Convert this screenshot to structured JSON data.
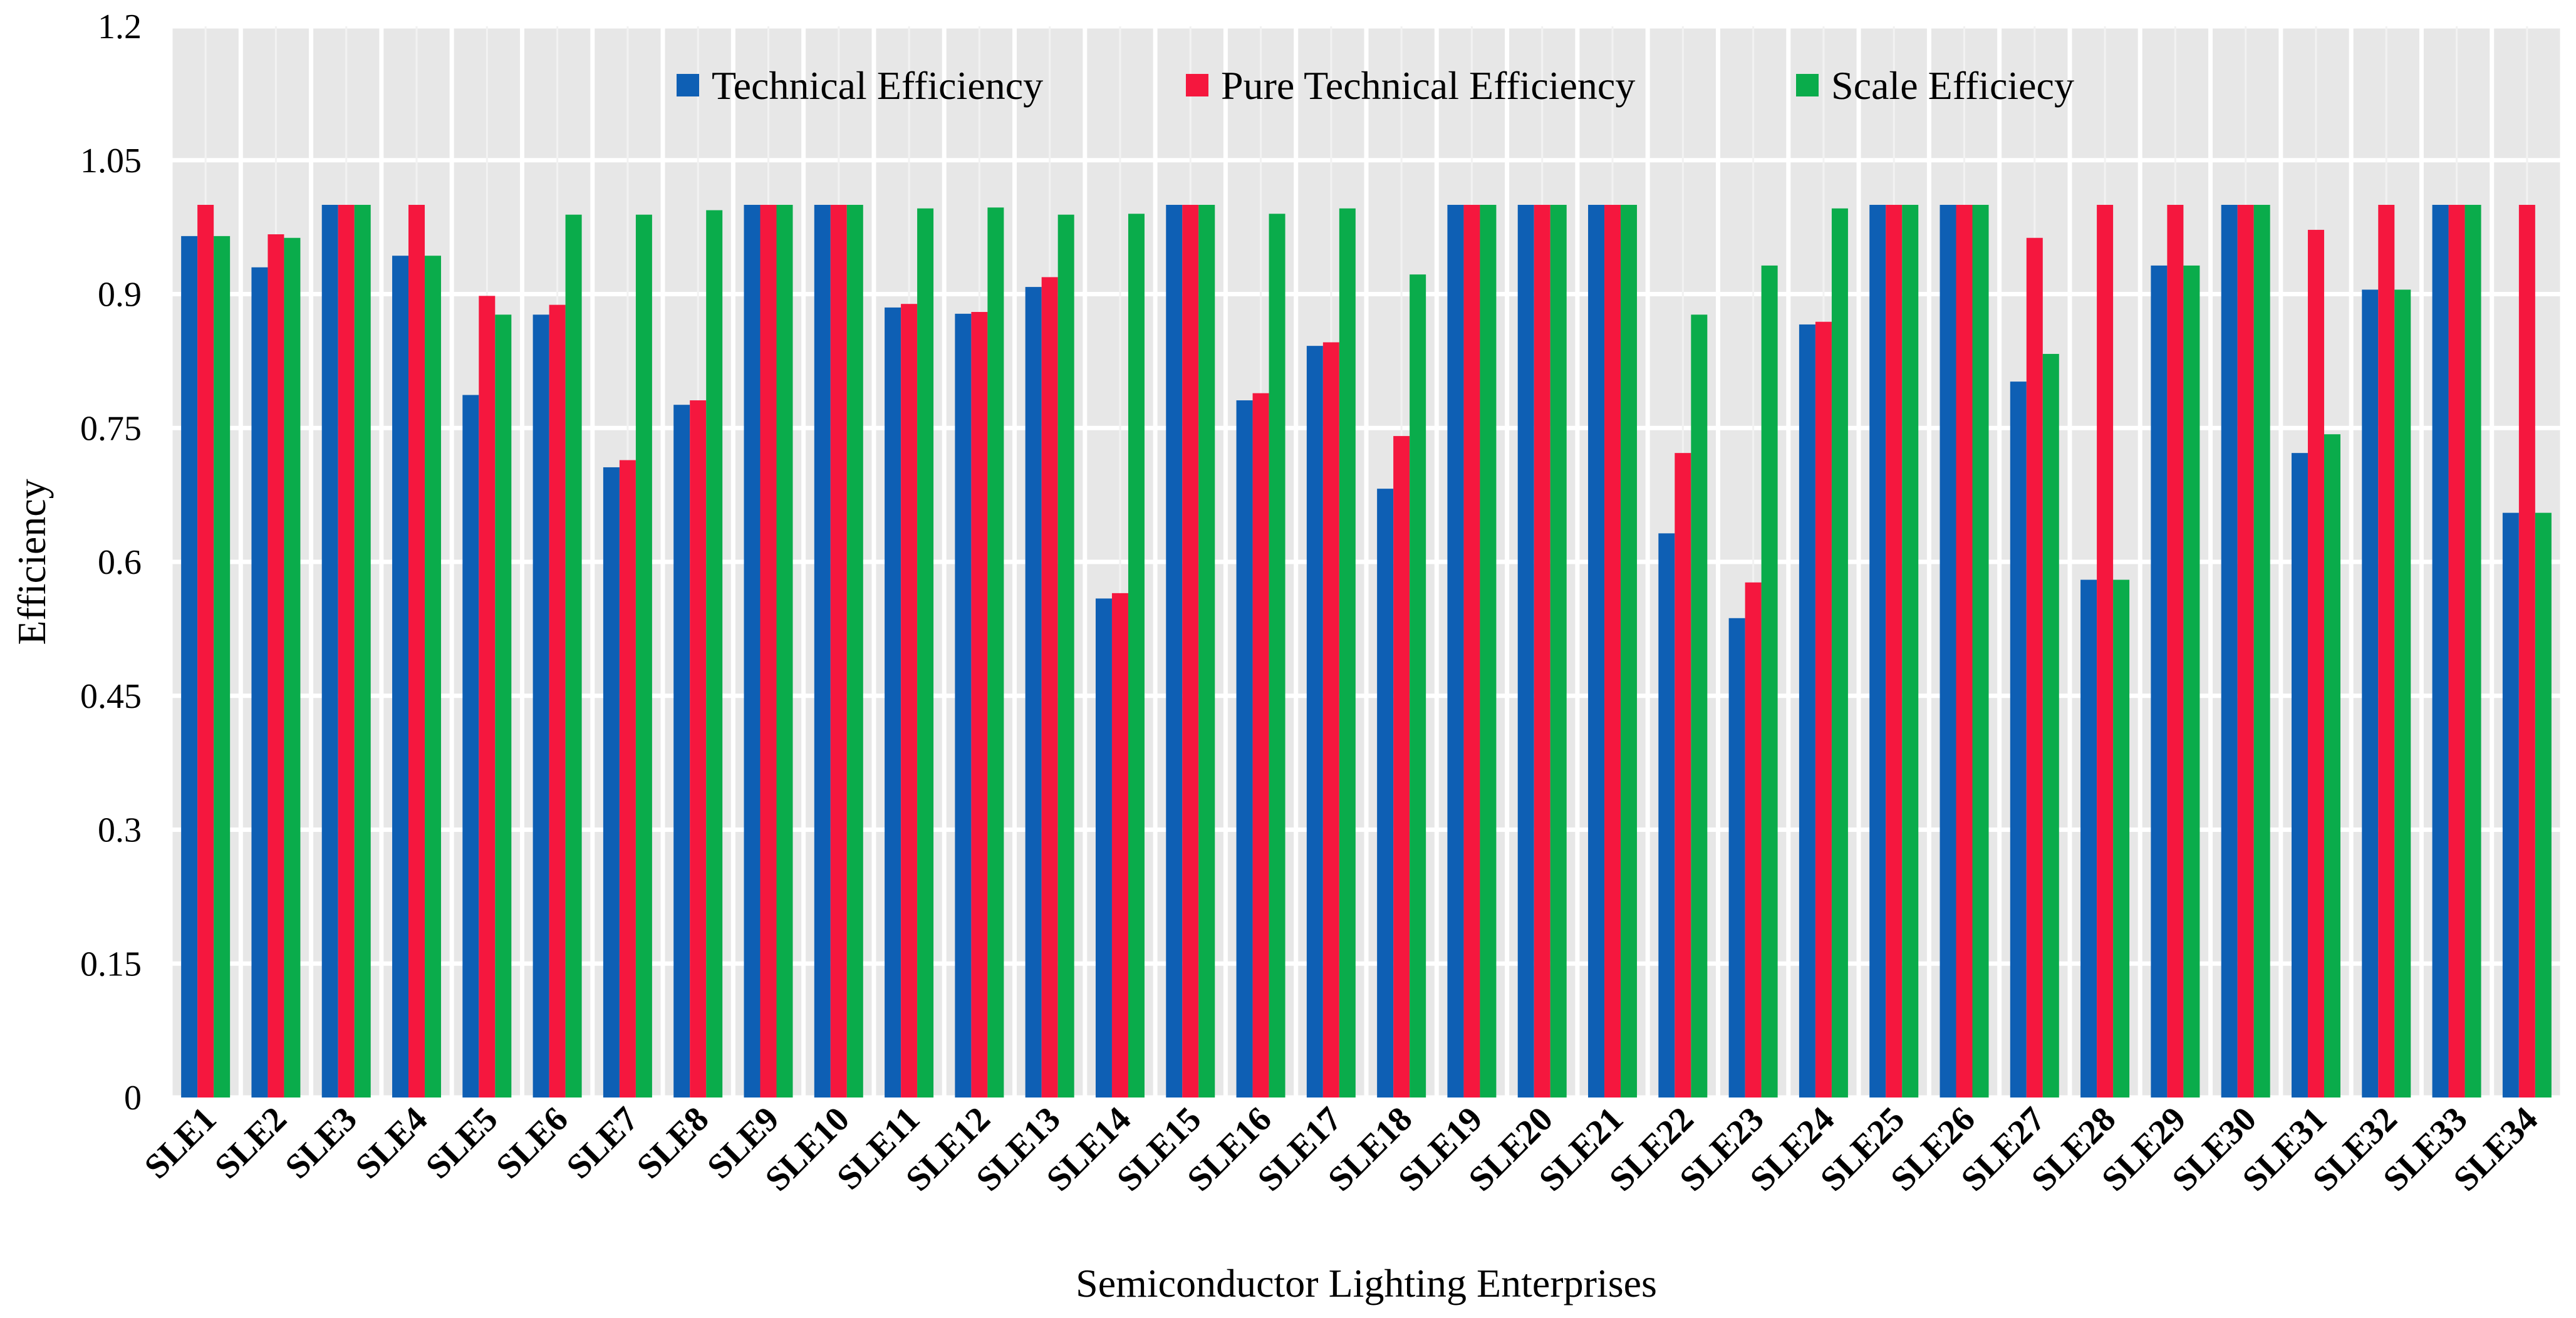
{
  "chart_data": {
    "type": "bar",
    "title": "",
    "xlabel": "Semiconductor Lighting Enterprises",
    "ylabel": "Efficiency",
    "ylim": [
      0,
      1.2
    ],
    "yticks": [
      "0",
      "0.15",
      "0.3",
      "0.45",
      "0.6",
      "0.75",
      "0.9",
      "1.05",
      "1.2"
    ],
    "grid": true,
    "legend_position": "top-center",
    "categories": [
      "SLE1",
      "SLE2",
      "SLE3",
      "SLE4",
      "SLE5",
      "SLE6",
      "SLE7",
      "SLE8",
      "SLE9",
      "SLE10",
      "SLE11",
      "SLE12",
      "SLE13",
      "SLE14",
      "SLE15",
      "SLE16",
      "SLE17",
      "SLE18",
      "SLE19",
      "SLE20",
      "SLE21",
      "SLE22",
      "SLE23",
      "SLE24",
      "SLE25",
      "SLE26",
      "SLE27",
      "SLE28",
      "SLE29",
      "SLE30",
      "SLE31",
      "SLE32",
      "SLE33",
      "SLE34"
    ],
    "series": [
      {
        "name": "Technical Efficiency",
        "color": "#0e5fb4",
        "values": [
          0.965,
          0.93,
          1.0,
          0.943,
          0.787,
          0.877,
          0.706,
          0.776,
          1.0,
          1.0,
          0.885,
          0.878,
          0.908,
          0.559,
          1.0,
          0.781,
          0.842,
          0.682,
          1.0,
          1.0,
          1.0,
          0.632,
          0.537,
          0.866,
          1.0,
          1.0,
          0.802,
          0.58,
          0.932,
          1.0,
          0.722,
          0.905,
          1.0,
          0.655
        ]
      },
      {
        "name": "Pure Technical Efficiency",
        "color": "#f5173e",
        "values": [
          1.0,
          0.967,
          1.0,
          1.0,
          0.898,
          0.888,
          0.714,
          0.781,
          1.0,
          1.0,
          0.889,
          0.88,
          0.919,
          0.565,
          1.0,
          0.789,
          0.846,
          0.741,
          1.0,
          1.0,
          1.0,
          0.722,
          0.577,
          0.869,
          1.0,
          1.0,
          0.963,
          1.0,
          1.0,
          1.0,
          0.972,
          1.0,
          1.0,
          1.0
        ]
      },
      {
        "name": "Scale Efficiecy",
        "color": "#0aac4b",
        "values": [
          0.965,
          0.963,
          1.0,
          0.943,
          0.877,
          0.989,
          0.989,
          0.994,
          1.0,
          1.0,
          0.996,
          0.997,
          0.989,
          0.99,
          1.0,
          0.99,
          0.996,
          0.922,
          1.0,
          1.0,
          1.0,
          0.877,
          0.932,
          0.996,
          1.0,
          1.0,
          0.833,
          0.58,
          0.932,
          1.0,
          0.743,
          0.905,
          1.0,
          0.655
        ]
      }
    ]
  }
}
